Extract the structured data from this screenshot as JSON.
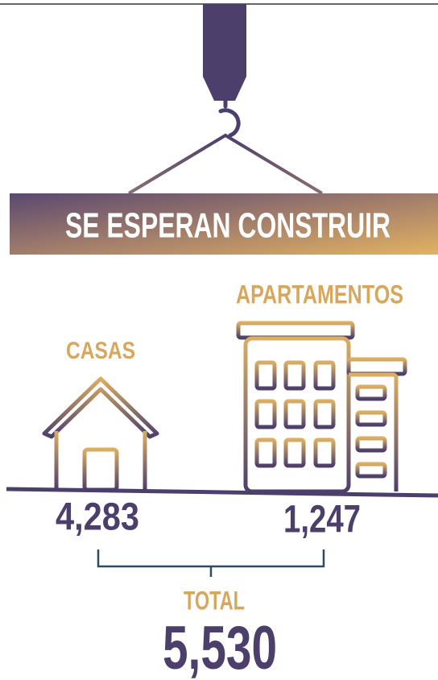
{
  "banner": {
    "title": "SE ESPERAN CONSTRUIR"
  },
  "items": [
    {
      "label": "CASAS",
      "value": "4,283"
    },
    {
      "label": "APARTAMENTOS",
      "value": "1,247"
    }
  ],
  "total": {
    "label": "TOTAL",
    "value": "5,530"
  }
}
